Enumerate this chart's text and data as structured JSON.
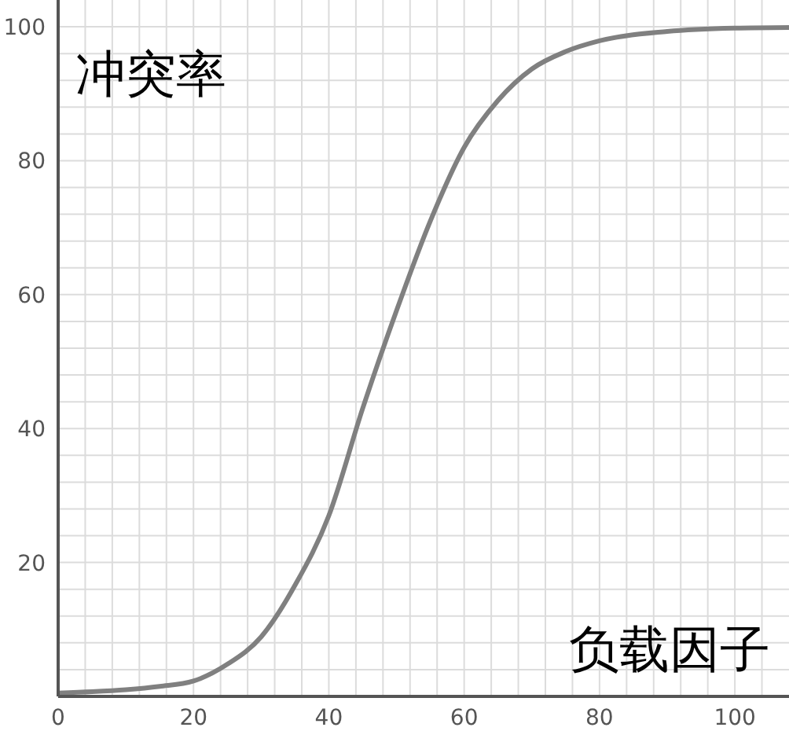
{
  "chart_data": {
    "type": "line",
    "xlabel": "负载因子",
    "ylabel": "冲突率",
    "x": [
      0,
      5,
      10,
      15,
      20,
      25,
      30,
      35,
      40,
      45,
      50,
      55,
      60,
      65,
      70,
      75,
      80,
      90,
      100,
      108
    ],
    "series": [
      {
        "color": "#808080",
        "values": [
          0.5,
          0.7,
          1,
          1.5,
          2.3,
          4.8,
          8.9,
          16.6,
          27,
          43,
          57.6,
          71,
          82,
          89,
          93.7,
          96.3,
          97.9,
          99.3,
          99.8,
          99.9
        ]
      }
    ],
    "xlim": [
      0,
      108
    ],
    "ylim": [
      0,
      104
    ],
    "xticks": [
      0,
      {
        "value": 4,
        "label": null
      },
      {
        "value": 8,
        "label": null
      },
      {
        "value": 12,
        "label": null
      },
      {
        "value": 16,
        "label": null
      },
      20,
      {
        "value": 24,
        "label": null
      },
      {
        "value": 28,
        "label": null
      },
      {
        "value": 32,
        "label": null
      },
      {
        "value": 36,
        "label": null
      },
      40,
      {
        "value": 44,
        "label": null
      },
      {
        "value": 48,
        "label": null
      },
      {
        "value": 52,
        "label": null
      },
      {
        "value": 56,
        "label": null
      },
      60,
      {
        "value": 64,
        "label": null
      },
      {
        "value": 68,
        "label": null
      },
      {
        "value": 72,
        "label": null
      },
      {
        "value": 76,
        "label": null
      },
      80,
      {
        "value": 84,
        "label": null
      },
      {
        "value": 88,
        "label": null
      },
      {
        "value": 92,
        "label": null
      },
      {
        "value": 96,
        "label": null
      },
      100,
      {
        "value": 104,
        "label": null
      }
    ],
    "yticks": [
      {
        "value": 4,
        "label": null
      },
      {
        "value": 8,
        "label": null
      },
      {
        "value": 12,
        "label": null
      },
      {
        "value": 16,
        "label": null
      },
      20,
      {
        "value": 24,
        "label": null
      },
      {
        "value": 28,
        "label": null
      },
      {
        "value": 32,
        "label": null
      },
      {
        "value": 36,
        "label": null
      },
      40,
      {
        "value": 44,
        "label": null
      },
      {
        "value": 48,
        "label": null
      },
      {
        "value": 52,
        "label": null
      },
      {
        "value": 56,
        "label": null
      },
      60,
      {
        "value": 64,
        "label": null
      },
      {
        "value": 68,
        "label": null
      },
      {
        "value": 72,
        "label": null
      },
      {
        "value": 76,
        "label": null
      },
      80,
      {
        "value": 84,
        "label": null
      },
      {
        "value": 88,
        "label": null
      },
      {
        "value": 92,
        "label": null
      },
      {
        "value": 96,
        "label": null
      },
      100
    ],
    "grid": true,
    "marker": "none",
    "line_style": "solid"
  }
}
